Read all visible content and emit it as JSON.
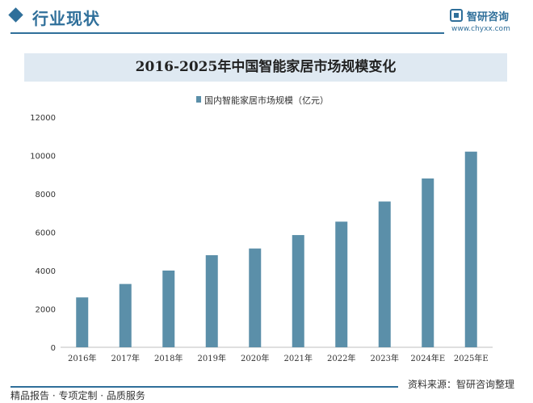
{
  "header": {
    "title": "行业现状",
    "brand": "智研咨询",
    "brand_url": "www.chyxx.com"
  },
  "chart_data": {
    "type": "bar",
    "title": "2016-2025年中国智能家居市场规模变化",
    "categories": [
      "2016年",
      "2017年",
      "2018年",
      "2019年",
      "2020年",
      "2021年",
      "2022年",
      "2023年",
      "2024年E",
      "2025年E"
    ],
    "series": [
      {
        "name": "国内智能家居市场规模（亿元）",
        "values": [
          2600,
          3300,
          4000,
          4800,
          5150,
          5850,
          6550,
          7600,
          8800,
          10200
        ]
      }
    ],
    "yticks": [
      0,
      2000,
      4000,
      6000,
      8000,
      10000,
      12000
    ],
    "ylim": [
      0,
      12000
    ],
    "xlabel": "",
    "ylabel": "",
    "legend_position": "top",
    "bar_color": "#5b8fa9",
    "grid": false
  },
  "footer": {
    "left": "精品报告 · 专项定制 · 品质服务",
    "source": "资料来源：智研咨询整理"
  },
  "colors": {
    "accent": "#2f6f9a",
    "title_band": "#dfe9f2"
  }
}
